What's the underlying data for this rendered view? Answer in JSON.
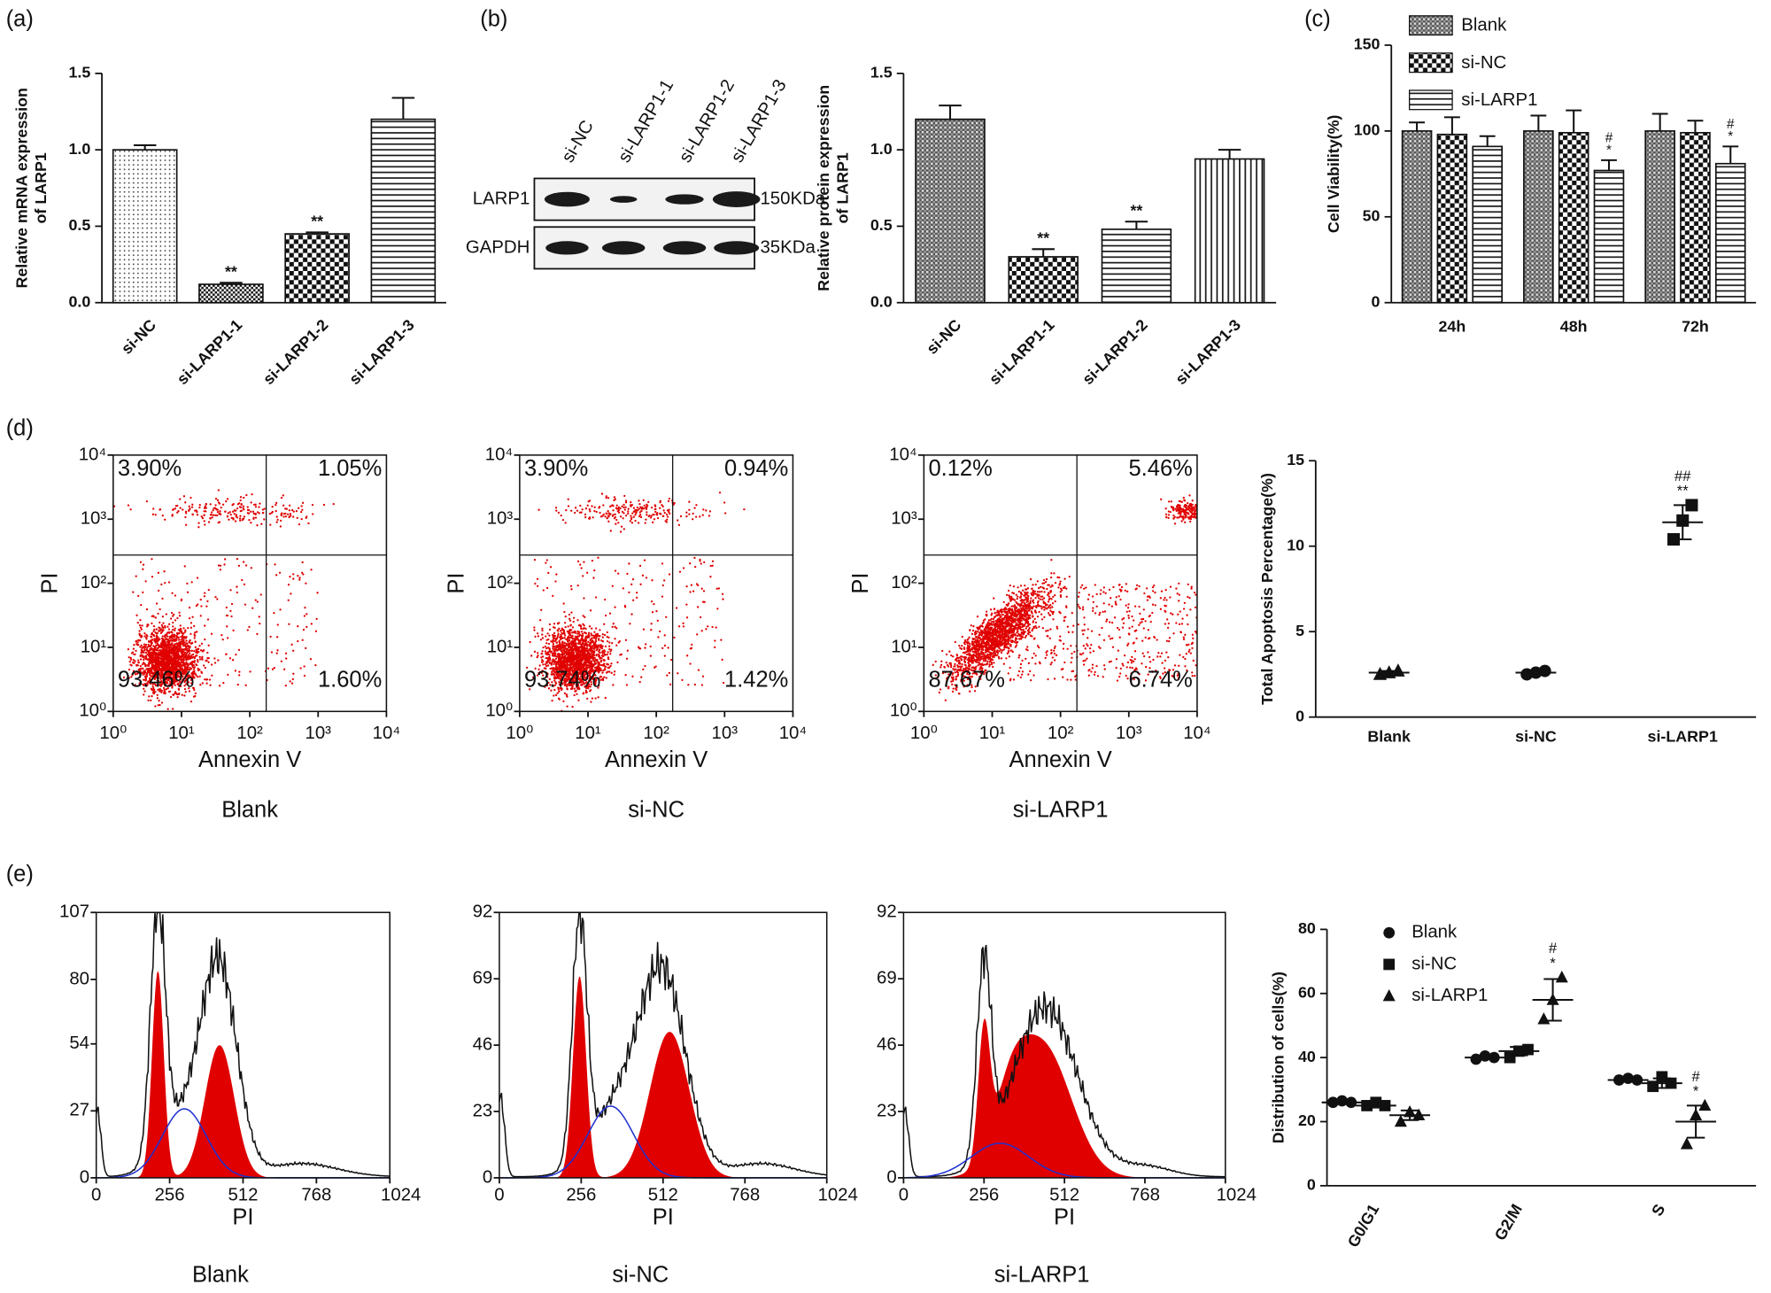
{
  "chart_data": [
    {
      "type": "bar",
      "panel": "(a)",
      "ylabel": [
        "Relative mRNA expression",
        "of LARP1"
      ],
      "categories": [
        "si-NC",
        "si-LARP1-1",
        "si-LARP1-2",
        "si-LARP1-3"
      ],
      "values": [
        1.0,
        0.12,
        0.45,
        1.2
      ],
      "errors": [
        0.03,
        0.01,
        0.01,
        0.14
      ],
      "annotations": [
        null,
        "**",
        "**",
        null
      ],
      "fills": [
        "dots",
        "checker-fine",
        "checker",
        "hlines"
      ],
      "ylim": [
        0,
        1.5
      ],
      "yticks": [
        {
          "value": 0,
          "label": "0.0"
        },
        0.5,
        {
          "value": 1,
          "label": "1.0"
        },
        1.5
      ]
    },
    {
      "type": "western-blot",
      "panel": "(b)",
      "lanes": [
        "si-NC",
        "si-LARP1-1",
        "si-LARP1-2",
        "si-LARP1-3"
      ],
      "rows": [
        {
          "name": "LARP1",
          "size": "150KDa"
        },
        {
          "name": "GAPDH",
          "size": "35KDa"
        }
      ]
    },
    {
      "type": "bar",
      "ylabel": [
        "Relative protein expression",
        "of LARP1"
      ],
      "categories": [
        "si-NC",
        "si-LARP1-1",
        "si-LARP1-2",
        "si-LARP1-3"
      ],
      "values": [
        1.2,
        0.3,
        0.48,
        0.94
      ],
      "errors": [
        0.09,
        0.05,
        0.05,
        0.06
      ],
      "annotations": [
        null,
        "**",
        "**",
        null
      ],
      "fills": [
        "crosshatch",
        "checker",
        "hlines",
        "vlines"
      ],
      "ylim": [
        0,
        1.5
      ],
      "yticks": [
        {
          "value": 0,
          "label": "0.0"
        },
        0.5,
        {
          "value": 1,
          "label": "1.0"
        },
        1.5
      ]
    },
    {
      "type": "grouped-bar",
      "panel": "(c)",
      "ylabel": "Cell Viability(%)",
      "categories": [
        "24h",
        "48h",
        "72h"
      ],
      "series": [
        {
          "name": "Blank",
          "fill": "crosshatch",
          "values": [
            100,
            100,
            100
          ],
          "errors": [
            5,
            9,
            10
          ],
          "annotations": [
            null,
            null,
            null
          ]
        },
        {
          "name": "si-NC",
          "fill": "checker",
          "values": [
            98,
            99,
            99
          ],
          "errors": [
            10,
            13,
            7
          ],
          "annotations": [
            null,
            null,
            null
          ]
        },
        {
          "name": "si-LARP1",
          "fill": "hlines",
          "values": [
            91,
            77,
            81
          ],
          "errors": [
            6,
            6,
            10
          ],
          "annotations": [
            null,
            [
              "#",
              "*"
            ],
            [
              "#",
              "*"
            ]
          ]
        }
      ],
      "ylim": [
        0,
        150
      ],
      "yticks": [
        0,
        50,
        100,
        150
      ],
      "legend": "top"
    },
    {
      "type": "flow-scatter",
      "panel": "(d)",
      "title": "Blank",
      "xlabel": "Annexin V",
      "ylabel": "PI",
      "quadrant_labels": [
        "3.90%",
        "1.05%",
        "93.46%",
        "1.60%"
      ],
      "log_scale": true,
      "xlim": [
        1,
        10000
      ],
      "ylim": [
        1,
        10000
      ],
      "xticks": [
        {
          "value": 1,
          "label": "10⁰"
        },
        {
          "value": 10,
          "label": "10¹"
        },
        {
          "value": 100,
          "label": "10²"
        },
        {
          "value": 1000,
          "label": "10³"
        },
        {
          "value": 10000,
          "label": "10⁴"
        }
      ],
      "yticks": [
        {
          "value": 1,
          "label": "10⁰"
        },
        {
          "value": 10,
          "label": "10¹"
        },
        {
          "value": 100,
          "label": "10²"
        },
        {
          "value": 1000,
          "label": "10³"
        },
        {
          "value": 10000,
          "label": "10⁴"
        }
      ]
    },
    {
      "type": "flow-scatter",
      "title": "si-NC",
      "xlabel": "Annexin V",
      "ylabel": "PI",
      "quadrant_labels": [
        "3.90%",
        "0.94%",
        "93.74%",
        "1.42%"
      ],
      "log_scale": true,
      "xlim": [
        1,
        10000
      ],
      "ylim": [
        1,
        10000
      ],
      "xticks": [
        {
          "value": 1,
          "label": "10⁰"
        },
        {
          "value": 10,
          "label": "10¹"
        },
        {
          "value": 100,
          "label": "10²"
        },
        {
          "value": 1000,
          "label": "10³"
        },
        {
          "value": 10000,
          "label": "10⁴"
        }
      ],
      "yticks": [
        {
          "value": 1,
          "label": "10⁰"
        },
        {
          "value": 10,
          "label": "10¹"
        },
        {
          "value": 100,
          "label": "10²"
        },
        {
          "value": 1000,
          "label": "10³"
        },
        {
          "value": 10000,
          "label": "10⁴"
        }
      ]
    },
    {
      "type": "flow-scatter",
      "title": "si-LARP1",
      "xlabel": "Annexin V",
      "ylabel": "PI",
      "quadrant_labels": [
        "0.12%",
        "5.46%",
        "87.67%",
        "6.74%"
      ],
      "log_scale": true,
      "xlim": [
        1,
        10000
      ],
      "ylim": [
        1,
        10000
      ],
      "xticks": [
        {
          "value": 1,
          "label": "10⁰"
        },
        {
          "value": 10,
          "label": "10¹"
        },
        {
          "value": 100,
          "label": "10²"
        },
        {
          "value": 1000,
          "label": "10³"
        },
        {
          "value": 10000,
          "label": "10⁴"
        }
      ],
      "yticks": [
        {
          "value": 1,
          "label": "10⁰"
        },
        {
          "value": 10,
          "label": "10¹"
        },
        {
          "value": 100,
          "label": "10²"
        },
        {
          "value": 1000,
          "label": "10³"
        },
        {
          "value": 10000,
          "label": "10⁴"
        }
      ]
    },
    {
      "type": "dot-plot",
      "ylabel": "Total Apoptosis Percentage(%)",
      "categories": [
        "Blank",
        "si-NC",
        "si-LARP1"
      ],
      "series": [
        {
          "markers": [
            "triangle",
            "circle",
            "square"
          ],
          "values": [
            2.6,
            2.6,
            11.4
          ],
          "errors": [
            0.1,
            0.1,
            1.0
          ],
          "points": [
            [
              2.5,
              2.6,
              2.7
            ],
            [
              2.5,
              2.6,
              2.7
            ],
            [
              10.4,
              11.5,
              12.4
            ]
          ],
          "annotations": [
            null,
            null,
            [
              "##",
              "**"
            ]
          ]
        }
      ],
      "ylim": [
        0,
        15
      ],
      "yticks": [
        0,
        5,
        10,
        15
      ]
    },
    {
      "type": "cell-cycle-histogram",
      "panel": "(e)",
      "title": "Blank",
      "xlabel": "PI",
      "xlim": [
        0,
        1024
      ],
      "xticks": [
        0,
        256,
        512,
        768,
        1024
      ],
      "ylim": [
        0,
        107
      ],
      "yticks": [
        0,
        27,
        54,
        80,
        107
      ]
    },
    {
      "type": "cell-cycle-histogram",
      "title": "si-NC",
      "xlabel": "PI",
      "xlim": [
        0,
        1024
      ],
      "xticks": [
        0,
        256,
        512,
        768,
        1024
      ],
      "ylim": [
        0,
        92
      ],
      "yticks": [
        0,
        23,
        46,
        69,
        92
      ]
    },
    {
      "type": "cell-cycle-histogram",
      "title": "si-LARP1",
      "xlabel": "PI",
      "xlim": [
        0,
        1024
      ],
      "xticks": [
        0,
        256,
        512,
        768,
        1024
      ],
      "ylim": [
        0,
        92
      ],
      "yticks": [
        0,
        23,
        46,
        69,
        92
      ]
    },
    {
      "type": "dot-plot",
      "ylabel": "Distribution of cells(%)",
      "categories": [
        "G0/G1",
        "G2/M",
        "S"
      ],
      "series": [
        {
          "name": "Blank",
          "marker": "circle",
          "values": [
            26,
            40,
            33
          ],
          "errors": [
            0.3,
            0.5,
            0.3
          ],
          "points": [
            [
              26,
              26.5,
              26
            ],
            [
              39.5,
              40.5,
              40
            ],
            [
              33,
              33.5,
              33
            ]
          ],
          "annotations": [
            null,
            null,
            null
          ]
        },
        {
          "name": "si-NC",
          "marker": "square",
          "values": [
            25,
            42,
            32
          ],
          "errors": [
            0.6,
            1.3,
            1.5
          ],
          "points": [
            [
              25,
              26,
              25
            ],
            [
              40,
              42,
              42.5
            ],
            [
              31,
              34,
              32
            ]
          ],
          "annotations": [
            null,
            null,
            null
          ]
        },
        {
          "name": "si-LARP1",
          "marker": "triangle",
          "values": [
            22,
            58,
            20
          ],
          "errors": [
            1.5,
            6.5,
            5
          ],
          "points": [
            [
              20,
              23,
              22
            ],
            [
              52,
              58,
              65
            ],
            [
              13,
              22,
              25
            ]
          ],
          "annotations": [
            null,
            [
              "#",
              "*"
            ],
            [
              "#",
              "*"
            ]
          ]
        }
      ],
      "ylim": [
        0,
        80
      ],
      "yticks": [
        0,
        20,
        40,
        60,
        80
      ],
      "legend": "top-left"
    }
  ]
}
